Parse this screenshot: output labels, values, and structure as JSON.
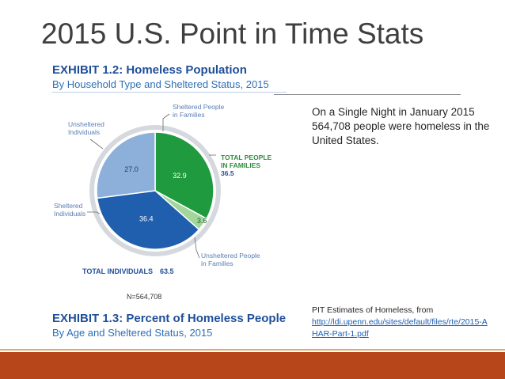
{
  "slide": {
    "title": "2015 U.S. Point in Time Stats",
    "stat_text": "On a Single Night in January 2015 564,708 people were homeless in the United States.",
    "source_label": "PIT Estimates of Homeless, from",
    "source_url": "http://ldi.upenn.edu/sites/default/files/rte/2015-AHAR-Part-1.pdf"
  },
  "exhibit1": {
    "title": "EXHIBIT 1.2: Homeless Population",
    "subtitle": "By Household Type and Sheltered Status, 2015",
    "n_label": "N=564,708"
  },
  "exhibit2": {
    "title": "EXHIBIT 1.3: Percent of Homeless People",
    "subtitle": "By Age and Sheltered Status, 2015"
  },
  "chart_data": {
    "type": "pie",
    "title": "EXHIBIT 1.2: Homeless Population",
    "subtitle": "By Household Type and Sheltered Status, 2015",
    "categories": [
      "Sheltered People in Families",
      "Unsheltered People in Families",
      "Sheltered Individuals",
      "Unsheltered Individuals"
    ],
    "values": [
      32.9,
      3.6,
      36.4,
      27.0
    ],
    "colors": [
      "#1f9a3f",
      "#a3d69a",
      "#1f5fae",
      "#8cb0da"
    ],
    "value_labels": [
      "32.9",
      "3.6",
      "36.4",
      "27.0"
    ],
    "slice_label_lines": [
      [
        "Sheltered People",
        "in Families"
      ],
      [
        "Unsheltered People",
        "in Families"
      ],
      [
        "Sheltered",
        "Individuals"
      ],
      [
        "Unsheltered",
        "Individuals"
      ]
    ],
    "totals": {
      "families_lines": [
        "TOTAL PEOPLE",
        "IN FAMILIES"
      ],
      "families_value": "36.5",
      "individuals_label": "TOTAL INDIVIDUALS",
      "individuals_value": "63.5"
    },
    "n": "N=564,708"
  }
}
